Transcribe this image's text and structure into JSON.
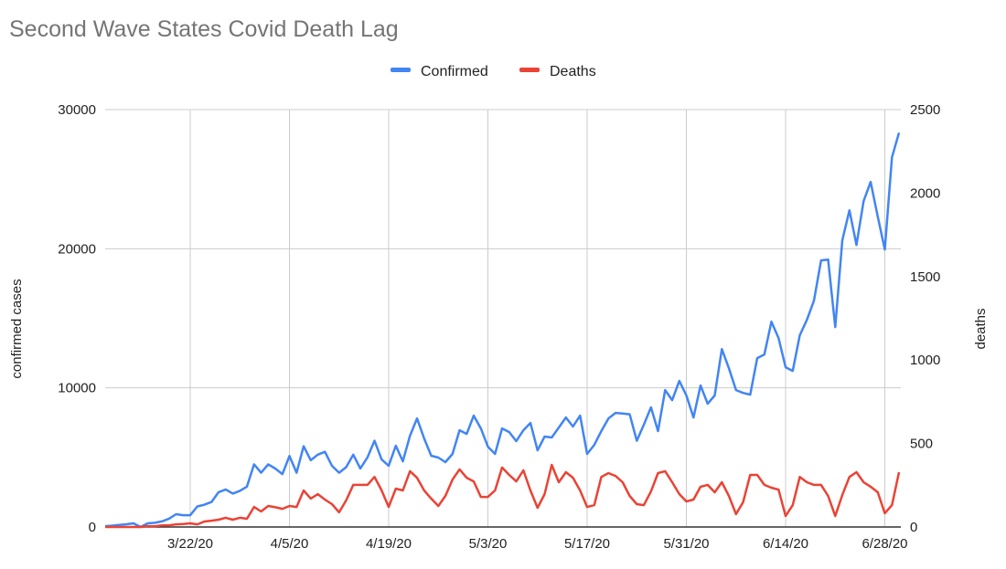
{
  "chart_data": {
    "type": "line",
    "title": "Second Wave States Covid Death Lag",
    "ylabel": "confirmed cases",
    "y2label": "deaths",
    "xlabel": "",
    "ylim": [
      0,
      30000
    ],
    "y2lim": [
      0,
      2500
    ],
    "yticks": [
      "0",
      "10000",
      "20000",
      "30000"
    ],
    "y2ticks": [
      "0",
      "500",
      "1000",
      "1500",
      "2000",
      "2500"
    ],
    "xticks": [
      "3/22/20",
      "4/5/20",
      "4/19/20",
      "5/3/20",
      "5/17/20",
      "5/31/20",
      "6/14/20",
      "6/28/20"
    ],
    "grid": true,
    "legend": "top",
    "x": [
      "3/10/20",
      "3/11/20",
      "3/12/20",
      "3/13/20",
      "3/14/20",
      "3/15/20",
      "3/16/20",
      "3/17/20",
      "3/18/20",
      "3/19/20",
      "3/20/20",
      "3/21/20",
      "3/22/20",
      "3/23/20",
      "3/24/20",
      "3/25/20",
      "3/26/20",
      "3/27/20",
      "3/28/20",
      "3/29/20",
      "3/30/20",
      "3/31/20",
      "4/1/20",
      "4/2/20",
      "4/3/20",
      "4/4/20",
      "4/5/20",
      "4/6/20",
      "4/7/20",
      "4/8/20",
      "4/9/20",
      "4/10/20",
      "4/11/20",
      "4/12/20",
      "4/13/20",
      "4/14/20",
      "4/15/20",
      "4/16/20",
      "4/17/20",
      "4/18/20",
      "4/19/20",
      "4/20/20",
      "4/21/20",
      "4/22/20",
      "4/23/20",
      "4/24/20",
      "4/25/20",
      "4/26/20",
      "4/27/20",
      "4/28/20",
      "4/29/20",
      "4/30/20",
      "5/1/20",
      "5/2/20",
      "5/3/20",
      "5/4/20",
      "5/5/20",
      "5/6/20",
      "5/7/20",
      "5/8/20",
      "5/9/20",
      "5/10/20",
      "5/11/20",
      "5/12/20",
      "5/13/20",
      "5/14/20",
      "5/15/20",
      "5/16/20",
      "5/17/20",
      "5/18/20",
      "5/19/20",
      "5/20/20",
      "5/21/20",
      "5/22/20",
      "5/23/20",
      "5/24/20",
      "5/25/20",
      "5/26/20",
      "5/27/20",
      "5/28/20",
      "5/29/20",
      "5/30/20",
      "5/31/20",
      "6/1/20",
      "6/2/20",
      "6/3/20",
      "6/4/20",
      "6/5/20",
      "6/6/20",
      "6/7/20",
      "6/8/20",
      "6/9/20",
      "6/10/20",
      "6/11/20",
      "6/12/20",
      "6/13/20",
      "6/14/20",
      "6/15/20",
      "6/16/20",
      "6/17/20",
      "6/18/20",
      "6/19/20",
      "6/20/20",
      "6/21/20",
      "6/22/20",
      "6/23/20",
      "6/24/20",
      "6/25/20",
      "6/26/20",
      "6/27/20",
      "6/28/20",
      "6/29/20",
      "6/30/20"
    ],
    "series": [
      {
        "name": "Confirmed",
        "axis": "left",
        "color": "#4285f4",
        "values": [
          60,
          100,
          150,
          200,
          260,
          0,
          260,
          300,
          400,
          600,
          920,
          850,
          850,
          1480,
          1600,
          1800,
          2500,
          2700,
          2400,
          2600,
          2900,
          4500,
          3900,
          4500,
          4200,
          3800,
          5100,
          3900,
          5800,
          4800,
          5200,
          5400,
          4400,
          3900,
          4300,
          5200,
          4200,
          5000,
          6200,
          4850,
          4400,
          5840,
          4720,
          6560,
          7800,
          6360,
          5120,
          4990,
          4660,
          5250,
          6950,
          6690,
          8000,
          7080,
          5770,
          5250,
          7080,
          6820,
          6170,
          6950,
          7480,
          5510,
          6500,
          6430,
          7150,
          7870,
          7220,
          8000,
          5250,
          5900,
          6890,
          7800,
          8200,
          8150,
          8100,
          6200,
          7350,
          8600,
          6890,
          9840,
          9120,
          10500,
          9450,
          7870,
          10170,
          8860,
          9450,
          12790,
          11410,
          9840,
          9640,
          9510,
          12140,
          12400,
          14760,
          13580,
          11480,
          11220,
          13780,
          14890,
          16270,
          19160,
          19220,
          14370,
          20600,
          22760,
          20270,
          23420,
          24800,
          22300,
          19940,
          26570,
          28340
        ]
      },
      {
        "name": "Deaths",
        "axis": "right",
        "color": "#ea4335",
        "values": [
          0,
          0,
          0,
          0,
          0,
          0,
          5,
          5,
          10,
          10,
          16,
          18,
          22,
          16,
          33,
          38,
          44,
          55,
          44,
          55,
          49,
          120,
          93,
          126,
          118,
          109,
          126,
          120,
          219,
          170,
          197,
          164,
          137,
          88,
          159,
          252,
          252,
          252,
          300,
          219,
          120,
          230,
          219,
          334,
          295,
          219,
          170,
          126,
          186,
          284,
          345,
          295,
          273,
          180,
          180,
          219,
          356,
          312,
          273,
          339,
          219,
          115,
          197,
          372,
          268,
          328,
          295,
          219,
          120,
          131,
          300,
          323,
          306,
          268,
          186,
          137,
          131,
          213,
          323,
          334,
          268,
          197,
          153,
          164,
          241,
          252,
          208,
          268,
          186,
          77,
          148,
          312,
          312,
          252,
          235,
          224,
          66,
          131,
          300,
          268,
          252,
          252,
          186,
          66,
          191,
          300,
          328,
          268,
          241,
          208,
          82,
          131,
          328
        ]
      }
    ]
  }
}
